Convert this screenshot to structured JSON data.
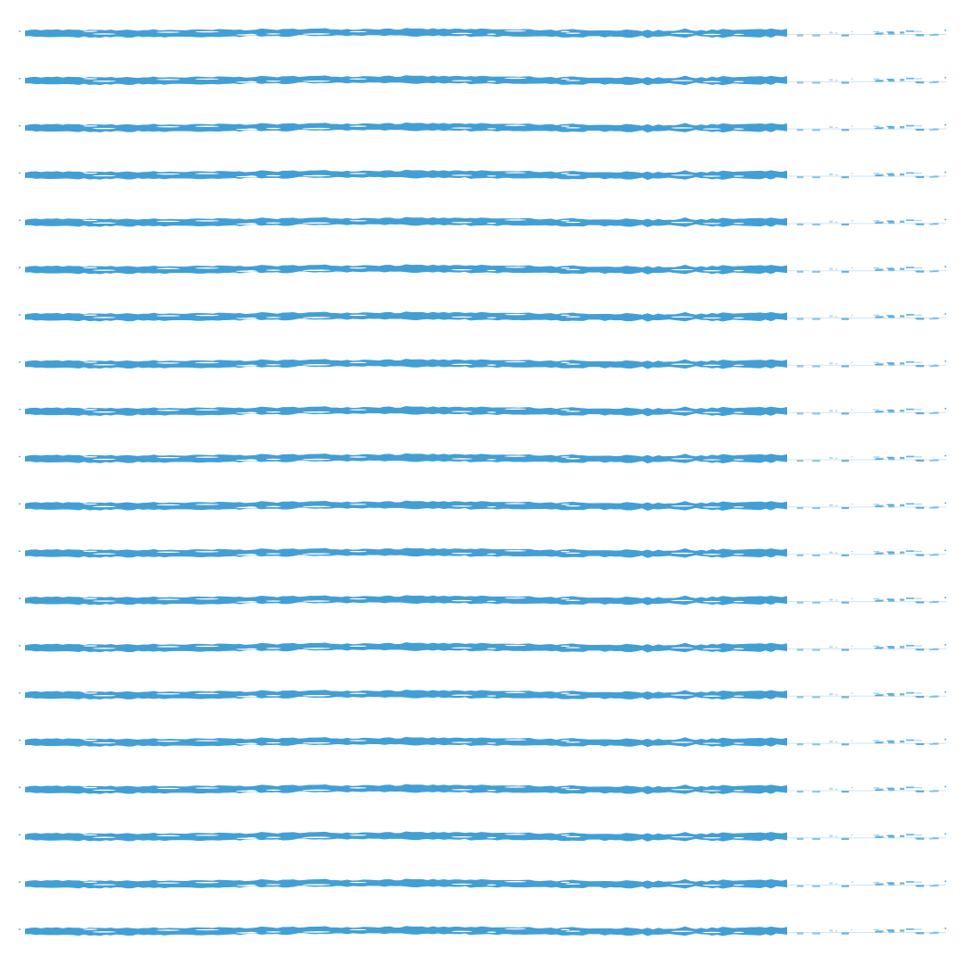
{
  "pattern": {
    "stroke_color": "#429fd6",
    "tail_color": "#cfe5f4",
    "background": "#ffffff"
  }
}
